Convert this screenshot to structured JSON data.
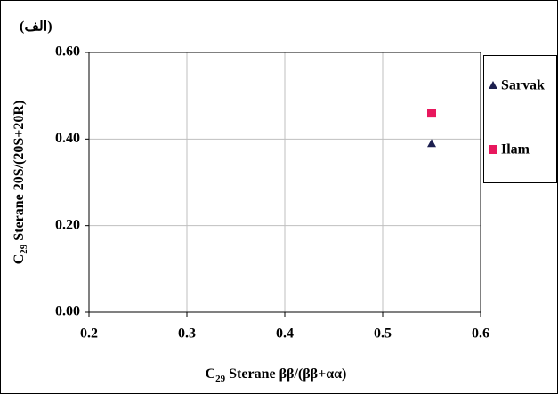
{
  "chart_data": {
    "type": "scatter",
    "title": "(الف)",
    "xlabel": [
      "C",
      "29",
      " Sterane ββ/(ββ+αα)"
    ],
    "ylabel": [
      "C",
      "29",
      " Sterane 20S/(20S+20R)"
    ],
    "xlim": [
      0.2,
      0.6
    ],
    "xticks": [
      0.2,
      0.3,
      0.4,
      0.5,
      0.6
    ],
    "ylim": [
      0,
      0.6
    ],
    "yticks": [
      {
        "value": 0,
        "label": "0.00"
      },
      {
        "value": 0.2,
        "label": "0.20"
      },
      {
        "value": 0.4,
        "label": "0.40"
      },
      {
        "value": 0.6,
        "label": "0.60"
      }
    ],
    "grid": true,
    "legend": "right",
    "series": [
      {
        "name": "Sarvak",
        "color": "#1c1f4f",
        "marker": "triangle",
        "x": [
          0.55
        ],
        "values": [
          0.39
        ]
      },
      {
        "name": "Ilam",
        "color": "#e8175d",
        "marker": "square",
        "x": [
          0.55
        ],
        "values": [
          0.46
        ]
      }
    ]
  }
}
